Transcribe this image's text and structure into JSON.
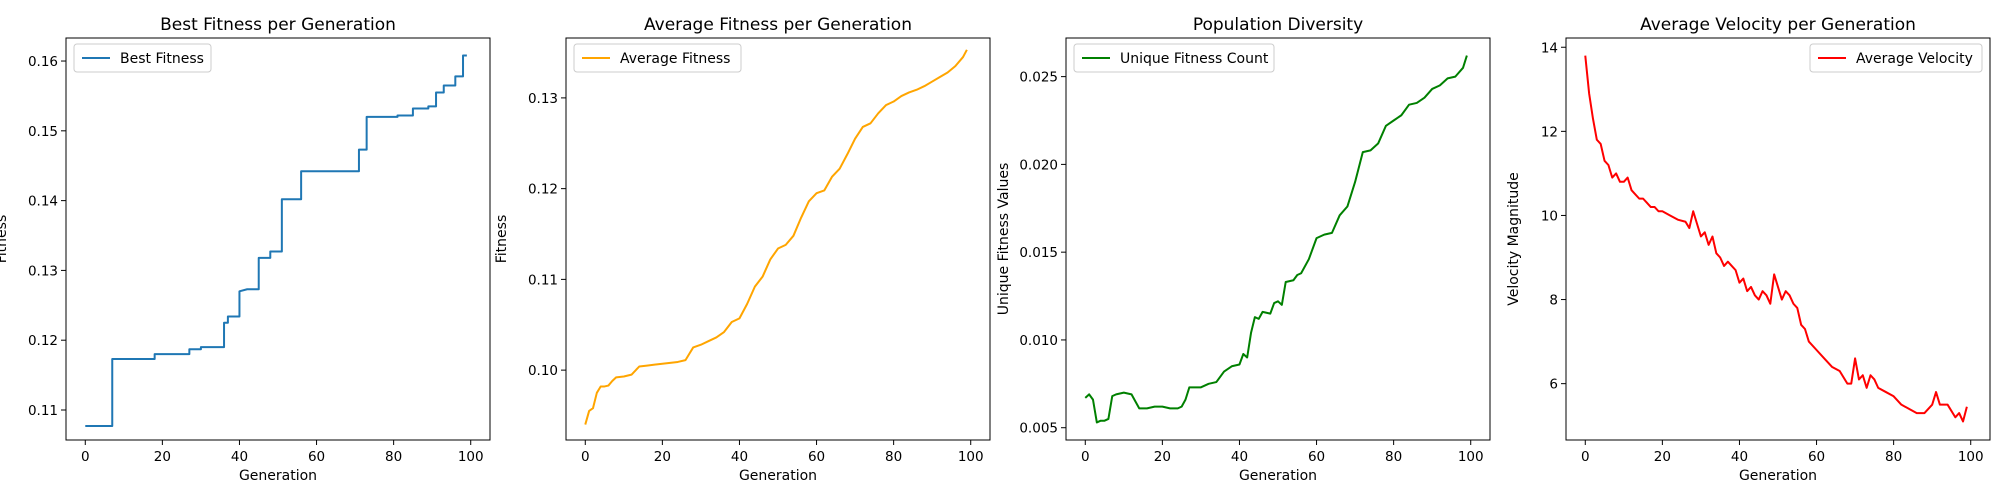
{
  "chart_data": [
    {
      "type": "line",
      "title": "Best Fitness per Generation",
      "xlabel": "Generation",
      "ylabel": "Fitness",
      "xlim": [
        -5,
        105
      ],
      "ylim": [
        0.1057,
        0.1633
      ],
      "xticks": [
        0,
        20,
        40,
        60,
        80,
        100
      ],
      "xtick_labels": [
        "0",
        "20",
        "40",
        "60",
        "80",
        "100"
      ],
      "yticks": [
        0.11,
        0.12,
        0.13,
        0.14,
        0.15,
        0.16
      ],
      "ytick_labels": [
        "0.11",
        "0.12",
        "0.13",
        "0.14",
        "0.15",
        "0.16"
      ],
      "legend_position": "upper-left",
      "step": true,
      "series": [
        {
          "name": "Best Fitness",
          "color": "#1f77b4",
          "x": [
            0,
            6,
            7,
            17,
            18,
            26,
            27,
            29,
            30,
            35,
            36,
            37,
            39,
            40,
            42,
            44,
            45,
            47,
            48,
            50,
            51,
            55,
            56,
            70,
            71,
            72,
            73,
            80,
            81,
            84,
            85,
            88,
            89,
            90,
            91,
            92,
            93,
            95,
            96,
            97,
            98,
            99
          ],
          "y": [
            0.1077,
            0.1077,
            0.1173,
            0.1173,
            0.118,
            0.118,
            0.1187,
            0.1187,
            0.119,
            0.119,
            0.1225,
            0.1234,
            0.1234,
            0.127,
            0.1273,
            0.1273,
            0.1318,
            0.1318,
            0.1327,
            0.1327,
            0.1402,
            0.1402,
            0.1442,
            0.1442,
            0.1473,
            0.1473,
            0.152,
            0.152,
            0.1522,
            0.1522,
            0.1532,
            0.1532,
            0.1535,
            0.1535,
            0.1555,
            0.1555,
            0.1565,
            0.1565,
            0.1578,
            0.1578,
            0.1608,
            0.1608
          ]
        }
      ]
    },
    {
      "type": "line",
      "title": "Average Fitness per Generation",
      "xlabel": "Generation",
      "ylabel": "Fitness",
      "xlim": [
        -5,
        105
      ],
      "ylim": [
        0.0923,
        0.1366
      ],
      "xticks": [
        0,
        20,
        40,
        60,
        80,
        100
      ],
      "xtick_labels": [
        "0",
        "20",
        "40",
        "60",
        "80",
        "100"
      ],
      "yticks": [
        0.1,
        0.11,
        0.12,
        0.13
      ],
      "ytick_labels": [
        "0.10",
        "0.11",
        "0.12",
        "0.13"
      ],
      "legend_position": "upper-left",
      "series": [
        {
          "name": "Average Fitness",
          "color": "#ffa500",
          "x": [
            0,
            1,
            2,
            3,
            4,
            5,
            6,
            7,
            8,
            10,
            12,
            14,
            16,
            18,
            20,
            22,
            24,
            26,
            27,
            28,
            30,
            32,
            34,
            36,
            38,
            40,
            42,
            44,
            46,
            48,
            50,
            52,
            54,
            56,
            58,
            60,
            62,
            64,
            66,
            68,
            70,
            72,
            74,
            76,
            78,
            80,
            82,
            84,
            86,
            88,
            90,
            92,
            94,
            96,
            98,
            99
          ],
          "y": [
            0.094,
            0.0955,
            0.0958,
            0.0975,
            0.0982,
            0.0982,
            0.0983,
            0.0988,
            0.0992,
            0.0993,
            0.0995,
            0.1004,
            0.1005,
            0.1006,
            0.1007,
            0.1008,
            0.1009,
            0.1011,
            0.1018,
            0.1025,
            0.1028,
            0.1032,
            0.1036,
            0.1042,
            0.1053,
            0.1057,
            0.1073,
            0.1092,
            0.1103,
            0.1122,
            0.1134,
            0.1138,
            0.1148,
            0.1168,
            0.1186,
            0.1195,
            0.1198,
            0.1213,
            0.1222,
            0.1238,
            0.1255,
            0.1268,
            0.1272,
            0.1283,
            0.1292,
            0.1296,
            0.1302,
            0.1306,
            0.1309,
            0.1313,
            0.1318,
            0.1323,
            0.1328,
            0.1335,
            0.1345,
            0.1353
          ]
        }
      ]
    },
    {
      "type": "line",
      "title": "Population Diversity",
      "xlabel": "Generation",
      "ylabel": "Unique Fitness Values",
      "xlim": [
        -5,
        105
      ],
      "ylim": [
        0.0043,
        0.0272
      ],
      "xticks": [
        0,
        20,
        40,
        60,
        80,
        100
      ],
      "xtick_labels": [
        "0",
        "20",
        "40",
        "60",
        "80",
        "100"
      ],
      "yticks": [
        0.005,
        0.01,
        0.015,
        0.02,
        0.025
      ],
      "ytick_labels": [
        "0.005",
        "0.010",
        "0.015",
        "0.020",
        "0.025"
      ],
      "legend_position": "upper-left",
      "series": [
        {
          "name": "Unique Fitness Count",
          "color": "#008000",
          "x": [
            0,
            1,
            2,
            3,
            4,
            5,
            6,
            7,
            8,
            10,
            12,
            13,
            14,
            16,
            18,
            20,
            22,
            24,
            25,
            26,
            27,
            28,
            30,
            32,
            34,
            36,
            38,
            40,
            41,
            42,
            43,
            44,
            45,
            46,
            48,
            49,
            50,
            51,
            52,
            54,
            55,
            56,
            58,
            60,
            62,
            64,
            66,
            68,
            70,
            72,
            74,
            76,
            78,
            80,
            82,
            84,
            86,
            88,
            90,
            92,
            94,
            96,
            98,
            99
          ],
          "y": [
            0.0067,
            0.0069,
            0.0066,
            0.0053,
            0.0054,
            0.0054,
            0.0055,
            0.0068,
            0.0069,
            0.007,
            0.0069,
            0.0065,
            0.0061,
            0.0061,
            0.0062,
            0.0062,
            0.0061,
            0.0061,
            0.0062,
            0.0066,
            0.0073,
            0.0073,
            0.0073,
            0.0075,
            0.0076,
            0.0082,
            0.0085,
            0.0086,
            0.0092,
            0.009,
            0.0104,
            0.0113,
            0.0112,
            0.0116,
            0.0115,
            0.0121,
            0.0122,
            0.012,
            0.0133,
            0.0134,
            0.0137,
            0.0138,
            0.0146,
            0.0158,
            0.016,
            0.0161,
            0.0171,
            0.0176,
            0.019,
            0.0207,
            0.0208,
            0.0212,
            0.0222,
            0.0225,
            0.0228,
            0.0234,
            0.0235,
            0.0238,
            0.0243,
            0.0245,
            0.0249,
            0.025,
            0.0255,
            0.0262
          ]
        }
      ]
    },
    {
      "type": "line",
      "title": "Average Velocity per Generation",
      "xlabel": "Generation",
      "ylabel": "Velocity Magnitude",
      "xlim": [
        -5,
        105
      ],
      "ylim": [
        4.66,
        14.22
      ],
      "xticks": [
        0,
        20,
        40,
        60,
        80,
        100
      ],
      "xtick_labels": [
        "0",
        "20",
        "40",
        "60",
        "80",
        "100"
      ],
      "yticks": [
        6,
        8,
        10,
        12,
        14
      ],
      "ytick_labels": [
        "6",
        "8",
        "10",
        "12",
        "14"
      ],
      "legend_position": "upper-right",
      "series": [
        {
          "name": "Average Velocity",
          "color": "#ff0000",
          "x": [
            0,
            1,
            2,
            3,
            4,
            5,
            6,
            7,
            8,
            9,
            10,
            11,
            12,
            13,
            14,
            15,
            16,
            17,
            18,
            19,
            20,
            22,
            24,
            26,
            27,
            28,
            29,
            30,
            31,
            32,
            33,
            34,
            35,
            36,
            37,
            38,
            39,
            40,
            41,
            42,
            43,
            44,
            45,
            46,
            47,
            48,
            49,
            50,
            51,
            52,
            53,
            54,
            55,
            56,
            57,
            58,
            60,
            62,
            64,
            66,
            68,
            69,
            70,
            71,
            72,
            73,
            74,
            75,
            76,
            78,
            80,
            82,
            84,
            86,
            88,
            90,
            91,
            92,
            94,
            96,
            97,
            98,
            99
          ],
          "y": [
            13.8,
            12.9,
            12.3,
            11.8,
            11.7,
            11.3,
            11.2,
            10.9,
            11.0,
            10.8,
            10.8,
            10.9,
            10.6,
            10.5,
            10.4,
            10.4,
            10.3,
            10.2,
            10.2,
            10.1,
            10.1,
            10.0,
            9.9,
            9.85,
            9.7,
            10.1,
            9.8,
            9.5,
            9.6,
            9.3,
            9.5,
            9.1,
            9.0,
            8.8,
            8.9,
            8.8,
            8.7,
            8.4,
            8.5,
            8.2,
            8.3,
            8.1,
            8.0,
            8.2,
            8.1,
            7.9,
            8.6,
            8.3,
            8.0,
            8.2,
            8.1,
            7.9,
            7.8,
            7.4,
            7.3,
            7.0,
            6.8,
            6.6,
            6.4,
            6.3,
            6.0,
            6.0,
            6.6,
            6.1,
            6.2,
            5.9,
            6.2,
            6.1,
            5.9,
            5.8,
            5.7,
            5.5,
            5.4,
            5.3,
            5.3,
            5.5,
            5.8,
            5.5,
            5.5,
            5.2,
            5.3,
            5.1,
            5.45
          ]
        }
      ]
    }
  ]
}
